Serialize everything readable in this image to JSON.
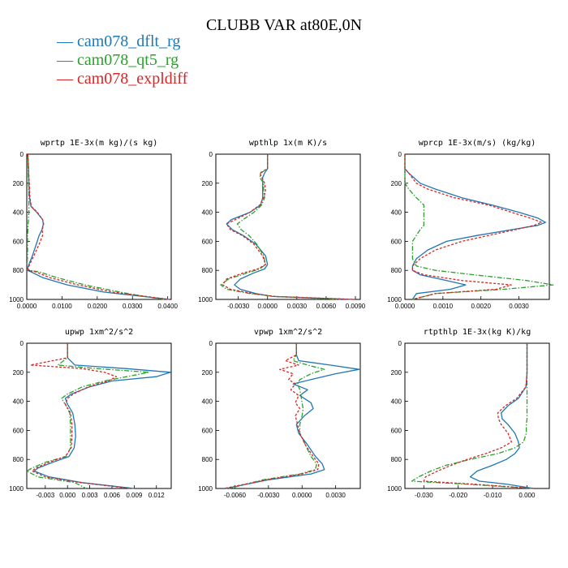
{
  "title": "CLUBB VAR at80E,0N",
  "legend": [
    {
      "label": "cam078_dflt_rg",
      "color": "#1f77b4"
    },
    {
      "label": "cam078_qt5_rg",
      "color": "#2ca02c"
    },
    {
      "label": "cam078_expldiff",
      "color": "#d62728"
    }
  ],
  "chart_data": [
    {
      "type": "line",
      "title": "wprtp  1E-3x(m kg)/(s kg)",
      "xlim": [
        0,
        0.041
      ],
      "ylim": [
        0,
        1000
      ],
      "xticks": [
        0,
        0.01,
        0.02,
        0.03,
        0.04
      ],
      "xticklabels": [
        "0.0000",
        "0.0100",
        "0.0200",
        "0.0300",
        "0.0400"
      ],
      "yticks": [
        0,
        200,
        400,
        600,
        800,
        1000
      ],
      "yticklabels": [
        "0",
        "200",
        "400",
        "600",
        "800",
        "1000"
      ],
      "y": [
        0,
        100,
        200,
        300,
        360,
        400,
        450,
        480,
        520,
        560,
        620,
        700,
        760,
        790,
        800,
        810,
        850,
        900,
        950,
        980,
        1000
      ],
      "series": [
        {
          "name": "cam078_dflt_rg",
          "x": [
            0.0003,
            0.0005,
            0.0006,
            0.0008,
            0.0012,
            0.0028,
            0.0045,
            0.0047,
            0.0043,
            0.0035,
            0.0027,
            0.0016,
            0.0006,
            0.0002,
            0.0001,
            0.0012,
            0.0045,
            0.0115,
            0.022,
            0.033,
            0.0405
          ]
        },
        {
          "name": "cam078_qt5_rg",
          "x": [
            0.0003,
            0.0004,
            0.0005,
            0.0006,
            0.0006,
            0.0006,
            0.0005,
            0.0004,
            0.0003,
            0.0002,
            0.0002,
            0.0002,
            0.0001,
            0.0002,
            0.0008,
            0.0035,
            0.0085,
            0.0165,
            0.0265,
            0.0335,
            0.039
          ]
        },
        {
          "name": "cam078_expldiff",
          "x": [
            0.0003,
            0.0005,
            0.0007,
            0.0009,
            0.0013,
            0.003,
            0.0045,
            0.0048,
            0.0044,
            0.0045,
            0.0035,
            0.002,
            0.0008,
            0.0003,
            0.0006,
            0.0025,
            0.0065,
            0.0145,
            0.0245,
            0.034,
            0.0405
          ]
        }
      ]
    },
    {
      "type": "line",
      "title": "wpthlp  1x(m K)/s",
      "xlim": [
        -0.0053,
        0.0095
      ],
      "ylim": [
        0,
        1000
      ],
      "xticks": [
        -0.003,
        0,
        0.003,
        0.006,
        0.009
      ],
      "xticklabels": [
        "-0.0030",
        "0.0000",
        "0.0030",
        "0.0060",
        "0.0090"
      ],
      "yticks": [
        0,
        200,
        400,
        600,
        800,
        1000
      ],
      "yticklabels": [
        "0",
        "200",
        "400",
        "600",
        "800",
        "1000"
      ],
      "y": [
        0,
        100,
        130,
        160,
        200,
        250,
        300,
        350,
        400,
        450,
        480,
        520,
        560,
        620,
        700,
        760,
        790,
        820,
        860,
        900,
        930,
        960,
        980,
        1000
      ],
      "series": [
        {
          "name": "cam078_dflt_rg",
          "x": [
            0,
            0,
            -0.0003,
            -0.0005,
            -0.0005,
            -0.0005,
            -0.0005,
            -0.0007,
            -0.0018,
            -0.0037,
            -0.0042,
            -0.0036,
            -0.0025,
            -0.0012,
            -0.0002,
            0,
            -0.0003,
            -0.0015,
            -0.0028,
            -0.0034,
            -0.0028,
            -0.0012,
            0.0005,
            0.0088
          ]
        },
        {
          "name": "cam078_qt5_rg",
          "x": [
            0,
            0,
            -0.0007,
            -0.0008,
            -0.0004,
            -0.0004,
            -0.0003,
            -0.0006,
            -0.0014,
            -0.0025,
            -0.0031,
            -0.0027,
            -0.0019,
            -0.0011,
            -0.0004,
            -0.0002,
            -0.0008,
            -0.0022,
            -0.004,
            -0.0048,
            -0.0042,
            -0.0018,
            0.0008,
            0.0075
          ]
        },
        {
          "name": "cam078_expldiff",
          "x": [
            0,
            0,
            -0.0008,
            -0.0006,
            -0.0003,
            -0.0002,
            -0.0004,
            -0.0008,
            -0.0018,
            -0.0033,
            -0.0042,
            -0.0038,
            -0.0026,
            -0.0014,
            -0.0005,
            -0.0002,
            -0.001,
            -0.0026,
            -0.0042,
            -0.0046,
            -0.0038,
            -0.0015,
            0.0008,
            0.009
          ]
        }
      ]
    },
    {
      "type": "line",
      "title": "wprcp  1E-3x(m/s) (kg/kg)",
      "xlim": [
        0,
        0.0038
      ],
      "ylim": [
        0,
        1000
      ],
      "xticks": [
        0,
        0.001,
        0.002,
        0.003
      ],
      "xticklabels": [
        "0.0000",
        "0.0010",
        "0.0020",
        "0.0030"
      ],
      "yticks": [
        0,
        200,
        400,
        600,
        800,
        1000
      ],
      "yticklabels": [
        "0",
        "200",
        "400",
        "600",
        "800",
        "1000"
      ],
      "y": [
        0,
        100,
        130,
        200,
        240,
        300,
        350,
        400,
        440,
        470,
        490,
        520,
        560,
        600,
        660,
        720,
        770,
        800,
        830,
        870,
        900,
        930,
        960,
        1000
      ],
      "series": [
        {
          "name": "cam078_dflt_rg",
          "x": [
            0,
            0,
            0.0001,
            0.0004,
            0.0008,
            0.0015,
            0.0023,
            0.003,
            0.0035,
            0.0037,
            0.0035,
            0.0028,
            0.0019,
            0.0011,
            0.0006,
            0.0003,
            0.0002,
            0.0002,
            0.0004,
            0.0011,
            0.0016,
            0.0012,
            0.0003,
            0.0002
          ]
        },
        {
          "name": "cam078_qt5_rg",
          "x": [
            0,
            0,
            0,
            0,
            0.0001,
            0.0003,
            0.0005,
            0.0005,
            0.0005,
            0.0005,
            0.0005,
            0.0004,
            0.0003,
            0.0002,
            0.0002,
            0.0002,
            0.0003,
            0.0008,
            0.0018,
            0.0032,
            0.0039,
            0.0026,
            0.0008,
            0.0002
          ]
        },
        {
          "name": "cam078_expldiff",
          "x": [
            0,
            0,
            0.0001,
            0.0003,
            0.0006,
            0.0013,
            0.0022,
            0.0028,
            0.0033,
            0.0036,
            0.0034,
            0.0029,
            0.0022,
            0.0015,
            0.0008,
            0.0004,
            0.0002,
            0.0002,
            0.0005,
            0.0015,
            0.0028,
            0.0024,
            0.0008,
            0.0002
          ]
        }
      ]
    },
    {
      "type": "line",
      "title": "upwp  1xm^2/s^2",
      "xlim": [
        -0.0055,
        0.014
      ],
      "ylim": [
        0,
        1000
      ],
      "xticks": [
        -0.003,
        0,
        0.003,
        0.006,
        0.009,
        0.012
      ],
      "xticklabels": [
        "-0.003",
        "0.000",
        "0.003",
        "0.006",
        "0.009",
        "0.012"
      ],
      "yticks": [
        0,
        200,
        400,
        600,
        800,
        1000
      ],
      "yticklabels": [
        "0",
        "200",
        "400",
        "600",
        "800",
        "1000"
      ],
      "y": [
        0,
        100,
        150,
        175,
        200,
        230,
        260,
        300,
        350,
        380,
        420,
        480,
        560,
        640,
        720,
        780,
        820,
        860,
        880,
        920,
        960,
        1000
      ],
      "series": [
        {
          "name": "cam078_dflt_rg",
          "x": [
            0,
            0,
            0.001,
            0.008,
            0.0139,
            0.012,
            0.006,
            0.003,
            0.0005,
            -0.0003,
            0,
            0.0007,
            0.001,
            0.0011,
            0.0009,
            0.0002,
            -0.002,
            -0.004,
            -0.0045,
            -0.0025,
            0.002,
            0.009
          ]
        },
        {
          "name": "cam078_qt5_rg",
          "x": [
            0,
            0,
            -0.0013,
            0.004,
            0.011,
            0.008,
            0.005,
            0.002,
            0,
            -0.0008,
            -0.0003,
            0.0003,
            0.0004,
            0.0004,
            0.0004,
            -0.0002,
            -0.003,
            -0.0048,
            -0.0055,
            -0.004,
            0.001,
            0.0025
          ]
        },
        {
          "name": "cam078_expldiff",
          "x": [
            0,
            0,
            -0.005,
            0.002,
            0.005,
            0.0066,
            0.0055,
            0.0028,
            0.0008,
            0,
            -0.0003,
            0.0004,
            0.0006,
            0.0006,
            0.0005,
            -0.0003,
            -0.0025,
            -0.0043,
            -0.0048,
            -0.003,
            0.0018,
            0.0085
          ]
        }
      ]
    },
    {
      "type": "line",
      "title": "vpwp  1xm^2/s^2",
      "xlim": [
        -0.0077,
        0.0052
      ],
      "ylim": [
        0,
        1000
      ],
      "xticks": [
        -0.006,
        -0.003,
        0,
        0.003
      ],
      "xticklabels": [
        "-0.0060",
        "-0.0030",
        "0.0000",
        "0.0030"
      ],
      "yticks": [
        0,
        200,
        400,
        600,
        800,
        1000
      ],
      "yticklabels": [
        "0",
        "200",
        "400",
        "600",
        "800",
        "1000"
      ],
      "y": [
        0,
        80,
        120,
        150,
        180,
        210,
        250,
        280,
        320,
        360,
        410,
        450,
        500,
        560,
        620,
        700,
        780,
        830,
        870,
        900,
        940,
        1000
      ],
      "series": [
        {
          "name": "cam078_dflt_rg",
          "x": [
            -0.0005,
            -0.0005,
            -0.0003,
            0.0025,
            0.0051,
            0.003,
            0.0008,
            -0.0008,
            0.0005,
            -0.0002,
            0.0008,
            0.001,
            0.0002,
            -0.0005,
            -0.0003,
            0.0005,
            0.0012,
            0.0018,
            0.002,
            0.0008,
            -0.003,
            -0.0068
          ]
        },
        {
          "name": "cam078_qt5_rg",
          "x": [
            -0.0005,
            -0.0005,
            -0.0008,
            0.0005,
            0.002,
            0.0008,
            -0.0002,
            -0.0004,
            -0.0002,
            -0.0001,
            0,
            0.0001,
            0,
            -0.0002,
            -0.0002,
            0.0003,
            0.0008,
            0.0013,
            0.0012,
            -0.0002,
            -0.0035,
            -0.0065
          ]
        },
        {
          "name": "cam078_expldiff",
          "x": [
            -0.0005,
            -0.0005,
            -0.0015,
            -0.0003,
            -0.002,
            -0.0008,
            -0.0012,
            -0.0006,
            -0.001,
            -0.0003,
            -0.0006,
            -0.0002,
            -0.0006,
            -0.0004,
            -0.0002,
            0.0003,
            0.001,
            0.0015,
            0.0014,
            0,
            -0.0032,
            -0.007
          ]
        }
      ]
    },
    {
      "type": "line",
      "title": "rtpthlp  1E-3x(kg K)/kg",
      "xlim": [
        -0.0355,
        0.0065
      ],
      "ylim": [
        0,
        1000
      ],
      "xticks": [
        -0.03,
        -0.02,
        -0.01,
        0
      ],
      "xticklabels": [
        "-0.030",
        "-0.020",
        "-0.010",
        "0.000"
      ],
      "yticks": [
        0,
        200,
        400,
        600,
        800,
        1000
      ],
      "yticklabels": [
        "0",
        "200",
        "400",
        "600",
        "800",
        "1000"
      ],
      "y": [
        0,
        200,
        300,
        380,
        430,
        480,
        520,
        560,
        620,
        680,
        720,
        760,
        800,
        840,
        880,
        920,
        950,
        970,
        1000
      ],
      "series": [
        {
          "name": "cam078_dflt_rg",
          "x": [
            0,
            0,
            -0.0003,
            -0.0025,
            -0.0055,
            -0.0075,
            -0.0072,
            -0.0055,
            -0.0035,
            -0.0025,
            -0.0022,
            -0.0035,
            -0.006,
            -0.01,
            -0.0145,
            -0.0165,
            -0.0138,
            -0.006,
            0.002
          ]
        },
        {
          "name": "cam078_qt5_rg",
          "x": [
            0,
            0,
            0,
            0,
            0,
            0,
            0,
            -0.0002,
            -0.0002,
            -0.001,
            -0.0035,
            -0.0085,
            -0.0165,
            -0.0235,
            -0.028,
            -0.0315,
            -0.0335,
            -0.018,
            0.002
          ]
        },
        {
          "name": "cam078_expldiff",
          "x": [
            0,
            0,
            -0.0003,
            -0.003,
            -0.0063,
            -0.0085,
            -0.0083,
            -0.0075,
            -0.0055,
            -0.0045,
            -0.0075,
            -0.012,
            -0.0175,
            -0.022,
            -0.026,
            -0.0295,
            -0.03,
            -0.016,
            0.002
          ]
        }
      ]
    }
  ]
}
